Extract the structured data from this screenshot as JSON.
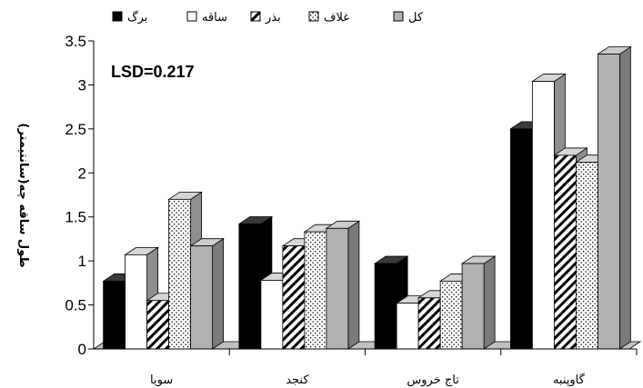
{
  "chart_data": {
    "type": "bar",
    "title": "",
    "ylabel": "طول ساقه چه(سانتیمتر)",
    "xlabel": "",
    "annotation": "LSD=0.217",
    "ylim": [
      0,
      3.5
    ],
    "y_ticks": [
      "0",
      "0.5",
      "1",
      "1.5",
      "2",
      "2.5",
      "3",
      "3.5"
    ],
    "categories": [
      "سویا",
      "کنجد",
      "تاج خروس",
      "گاوپنبه"
    ],
    "series": [
      {
        "name": "برگ",
        "values": [
          0.77,
          1.42,
          0.97,
          2.5
        ],
        "color": "#000000",
        "pattern": "solid-black"
      },
      {
        "name": "ساقه",
        "values": [
          1.07,
          0.78,
          0.52,
          3.04
        ],
        "color": "#ffffff",
        "pattern": "solid-white"
      },
      {
        "name": "بذر",
        "values": [
          0.55,
          1.17,
          0.58,
          2.2
        ],
        "color": "#ffffff",
        "pattern": "diagonal-hatch"
      },
      {
        "name": "غلاف",
        "values": [
          1.7,
          1.33,
          0.77,
          2.12
        ],
        "color": "#ffffff",
        "pattern": "dots"
      },
      {
        "name": "کل",
        "values": [
          1.17,
          1.37,
          0.97,
          3.35
        ],
        "color": "#b2b2b2",
        "pattern": "solid-gray"
      }
    ],
    "legend_position": "top",
    "grid": false,
    "three_d": true
  }
}
